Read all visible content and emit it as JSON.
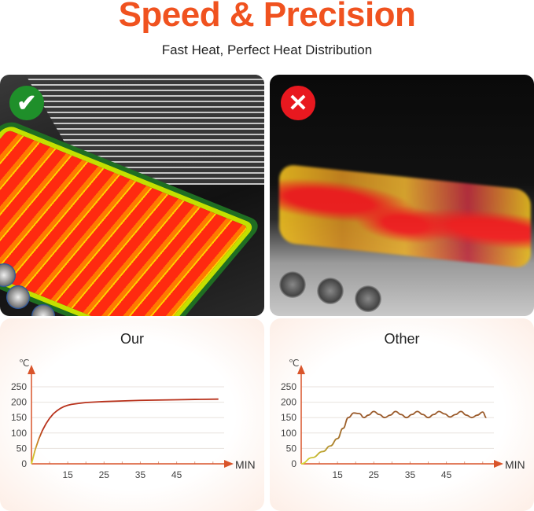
{
  "header": {
    "title": "Speed & Precision",
    "subtitle": "Fast Heat, Perfect Heat Distribution"
  },
  "photos": [
    {
      "badge_icon": "check-icon",
      "badge_color": "#1f8f2a"
    },
    {
      "badge_icon": "x-icon",
      "badge_color": "#e8181f"
    }
  ],
  "colors": {
    "title": "#f0521f",
    "axis": "#d9542a",
    "our_curve": "#b8321c",
    "other_curve": "#9a5a2a"
  },
  "chart_data": [
    {
      "type": "line",
      "title": "Our",
      "ylabel": "℃",
      "xlabel": "MIN",
      "ylim": [
        0,
        250
      ],
      "xlim": [
        5,
        57
      ],
      "yticks": [
        "0",
        "50",
        "100",
        "150",
        "200",
        "250"
      ],
      "xticks": [
        "15",
        "25",
        "35",
        "45"
      ],
      "grid": true,
      "x": [
        5,
        6,
        7,
        8,
        9,
        10,
        11,
        12,
        13,
        14,
        15,
        16,
        18,
        20,
        25,
        30,
        35,
        40,
        45,
        50,
        56.5
      ],
      "y": [
        0,
        45,
        80,
        108,
        130,
        148,
        162,
        172,
        180,
        186,
        190,
        193,
        196,
        199,
        202,
        204,
        206,
        207,
        208,
        209,
        210
      ]
    },
    {
      "type": "line",
      "title": "Other",
      "ylabel": "℃",
      "xlabel": "MIN",
      "ylim": [
        0,
        250
      ],
      "xlim": [
        5,
        57
      ],
      "yticks": [
        "0",
        "50",
        "100",
        "150",
        "200",
        "250"
      ],
      "xticks": [
        "15",
        "25",
        "35",
        "45"
      ],
      "grid": true,
      "x": [
        5,
        8,
        11,
        13,
        15,
        16.5,
        18,
        19.5,
        21,
        22.3,
        23.5,
        25,
        26.5,
        28,
        29.5,
        31,
        32.5,
        34,
        35.5,
        37,
        38.5,
        40,
        41.5,
        43,
        44.5,
        46,
        47.5,
        49,
        50.5,
        52,
        53.5,
        55,
        56
      ],
      "y": [
        0,
        20,
        40,
        58,
        82,
        115,
        150,
        165,
        163,
        150,
        158,
        170,
        160,
        150,
        158,
        170,
        160,
        150,
        160,
        170,
        160,
        150,
        160,
        170,
        162,
        152,
        160,
        170,
        158,
        150,
        158,
        168,
        150
      ]
    }
  ]
}
